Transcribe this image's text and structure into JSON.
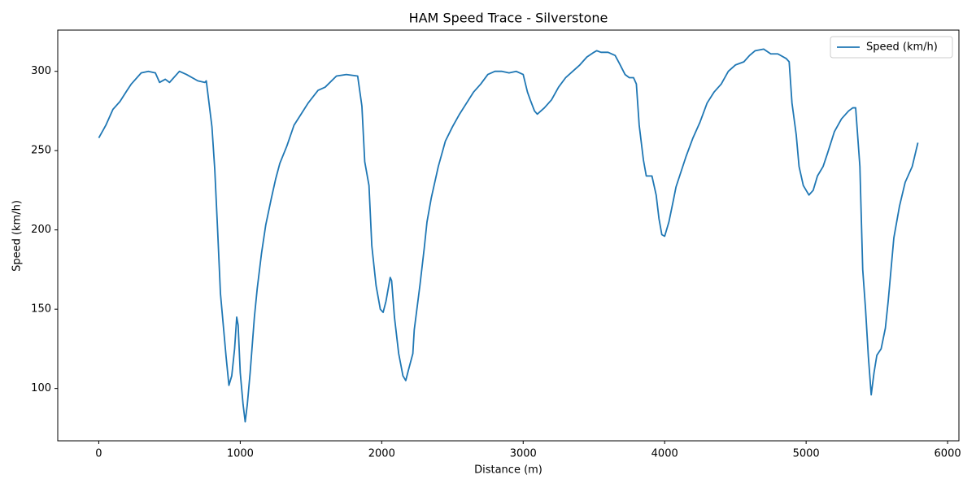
{
  "chart_data": {
    "type": "line",
    "title": "HAM Speed Trace - Silverstone",
    "x_label": "Distance (m)",
    "y_label": "Speed (km/h)",
    "x": [
      0,
      50,
      100,
      150,
      200,
      230,
      300,
      350,
      400,
      430,
      470,
      500,
      570,
      620,
      700,
      750,
      760,
      800,
      820,
      840,
      860,
      900,
      920,
      940,
      960,
      975,
      985,
      1000,
      1020,
      1035,
      1050,
      1070,
      1100,
      1120,
      1150,
      1180,
      1220,
      1250,
      1280,
      1330,
      1380,
      1430,
      1480,
      1550,
      1600,
      1680,
      1750,
      1830,
      1860,
      1880,
      1910,
      1930,
      1960,
      1990,
      2010,
      2030,
      2060,
      2070,
      2090,
      2120,
      2150,
      2170,
      2190,
      2220,
      2230,
      2270,
      2300,
      2320,
      2350,
      2400,
      2450,
      2500,
      2550,
      2600,
      2650,
      2700,
      2750,
      2800,
      2850,
      2900,
      2950,
      3000,
      3030,
      3050,
      3080,
      3100,
      3150,
      3200,
      3250,
      3300,
      3350,
      3400,
      3450,
      3500,
      3520,
      3550,
      3600,
      3650,
      3680,
      3720,
      3750,
      3780,
      3800,
      3820,
      3850,
      3870,
      3910,
      3940,
      3960,
      3980,
      4000,
      4030,
      4060,
      4080,
      4150,
      4200,
      4250,
      4300,
      4350,
      4400,
      4450,
      4500,
      4560,
      4600,
      4640,
      4700,
      4750,
      4800,
      4860,
      4880,
      4900,
      4930,
      4950,
      4980,
      5020,
      5050,
      5080,
      5120,
      5150,
      5200,
      5250,
      5300,
      5330,
      5350,
      5380,
      5400,
      5420,
      5440,
      5460,
      5480,
      5500,
      5530,
      5560,
      5580,
      5620,
      5660,
      5700,
      5750,
      5790
    ],
    "series": [
      {
        "name": "Speed (km/h)",
        "color": "#1f77b4",
        "values": [
          258,
          266,
          276,
          281,
          288,
          292,
          299,
          300,
          299,
          293,
          295,
          293,
          300,
          298,
          294,
          293,
          294,
          265,
          238,
          200,
          160,
          120,
          102,
          108,
          125,
          145,
          140,
          110,
          90,
          79,
          90,
          110,
          145,
          163,
          185,
          203,
          220,
          232,
          242,
          253,
          266,
          273,
          280,
          288,
          290,
          297,
          298,
          297,
          278,
          243,
          228,
          190,
          165,
          150,
          148,
          155,
          170,
          168,
          145,
          122,
          108,
          105,
          112,
          122,
          137,
          165,
          188,
          205,
          220,
          240,
          256,
          265,
          273,
          280,
          287,
          292,
          298,
          300,
          300,
          299,
          300,
          298,
          287,
          282,
          275,
          273,
          277,
          282,
          290,
          296,
          300,
          304,
          309,
          312,
          313,
          312,
          312,
          310,
          305,
          298,
          296,
          296,
          292,
          266,
          244,
          234,
          234,
          222,
          207,
          197,
          196,
          205,
          218,
          227,
          246,
          258,
          268,
          280,
          287,
          292,
          300,
          304,
          306,
          310,
          313,
          314,
          311,
          311,
          308,
          306,
          280,
          260,
          240,
          228,
          222,
          225,
          234,
          240,
          248,
          262,
          270,
          275,
          277,
          277,
          240,
          175,
          150,
          120,
          96,
          110,
          121,
          125,
          138,
          155,
          195,
          215,
          230,
          240,
          255
        ]
      }
    ],
    "xlim": [
      -290,
      6080
    ],
    "ylim": [
      67,
      326
    ],
    "xticks": [
      0,
      1000,
      2000,
      3000,
      4000,
      5000,
      6000
    ],
    "yticks": [
      100,
      150,
      200,
      250,
      300
    ],
    "grid": false,
    "legend": "upper right"
  }
}
